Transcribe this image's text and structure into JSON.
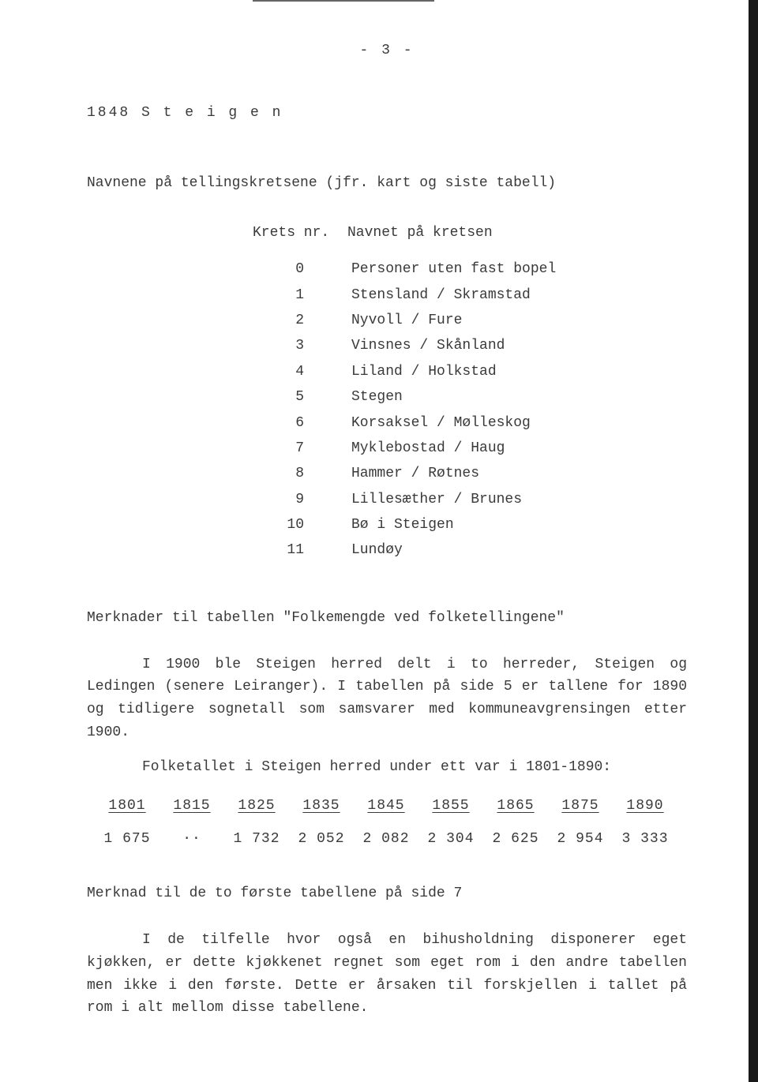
{
  "page_number": "- 3 -",
  "title": "1848  S t e i g e n",
  "subtitle": "Navnene på tellingskretsene (jfr. kart og siste tabell)",
  "krets_header": {
    "col1": "Krets nr.",
    "col2": "Navnet på kretsen"
  },
  "krets": [
    {
      "nr": "0",
      "name": "Personer uten fast bopel"
    },
    {
      "nr": "1",
      "name": "Stensland / Skramstad"
    },
    {
      "nr": "2",
      "name": "Nyvoll / Fure"
    },
    {
      "nr": "3",
      "name": "Vinsnes / Skånland"
    },
    {
      "nr": "4",
      "name": "Liland / Holkstad"
    },
    {
      "nr": "5",
      "name": "Stegen"
    },
    {
      "nr": "6",
      "name": "Korsaksel / Mølleskog"
    },
    {
      "nr": "7",
      "name": "Myklebostad / Haug"
    },
    {
      "nr": "8",
      "name": "Hammer / Røtnes"
    },
    {
      "nr": "9",
      "name": "Lillesæther / Brunes"
    },
    {
      "nr": "10",
      "name": "Bø i Steigen"
    },
    {
      "nr": "11",
      "name": "Lundøy"
    }
  ],
  "section1_heading": "Merknader til tabellen \"Folkemengde ved folketellingene\"",
  "para1": "I 1900 ble Steigen herred delt i to herreder, Steigen og Ledingen (senere Leiranger). I tabellen på side 5 er tallene for 1890 og tidligere sognetall som samsvarer med kommuneavgrensingen etter 1900.",
  "para1b": "Folketallet i Steigen herred under ett var i 1801-1890:",
  "pop_years": [
    "1801",
    "1815",
    "1825",
    "1835",
    "1845",
    "1855",
    "1865",
    "1875",
    "1890"
  ],
  "pop_values": [
    "1 675",
    "··",
    "1 732",
    "2 052",
    "2 082",
    "2 304",
    "2 625",
    "2 954",
    "3 333"
  ],
  "section2_heading": "Merknad til de to første tabellene på side 7",
  "para2": "I de tilfelle hvor også en bihusholdning disponerer eget kjøkken, er dette kjøkkenet regnet som eget rom i den andre tabellen men ikke i den første. Dette er årsaken til forskjellen i tallet på rom i alt mellom disse tabellene."
}
